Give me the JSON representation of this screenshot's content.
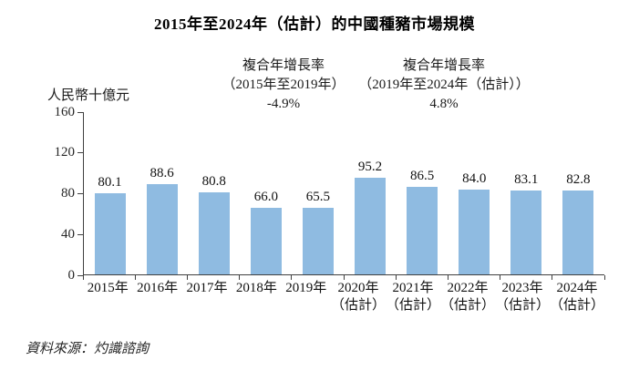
{
  "title": "2015年至2024年（估計）的中國種豬市場規模",
  "annotations": {
    "left": {
      "line1": "複合年增長率",
      "line2": "（2015年至2019年）",
      "value": "-4.9%"
    },
    "right": {
      "line1": "複合年增長率",
      "line2": "（2019年至2024年（估計））",
      "value": "4.8%"
    }
  },
  "source": "資料來源：灼識諮詢",
  "colors": {
    "bar": "#8FBBE1",
    "axis": "#404040"
  },
  "chart_data": {
    "type": "bar",
    "title": "2015年至2024年（估計）的中國種豬市場規模",
    "ylabel": "人民幣十億元",
    "xlabel": "",
    "ylim": [
      0,
      160
    ],
    "yticks": [
      0,
      40,
      80,
      120,
      160
    ],
    "grid": false,
    "legend": false,
    "categories": [
      {
        "label": "2015年",
        "sublabel": ""
      },
      {
        "label": "2016年",
        "sublabel": ""
      },
      {
        "label": "2017年",
        "sublabel": ""
      },
      {
        "label": "2018年",
        "sublabel": ""
      },
      {
        "label": "2019年",
        "sublabel": ""
      },
      {
        "label": "2020年",
        "sublabel": "（估計）"
      },
      {
        "label": "2021年",
        "sublabel": "（估計）"
      },
      {
        "label": "2022年",
        "sublabel": "（估計）"
      },
      {
        "label": "2023年",
        "sublabel": "（估計）"
      },
      {
        "label": "2024年",
        "sublabel": "（估計）"
      }
    ],
    "values": [
      80.1,
      88.6,
      80.8,
      66.0,
      65.5,
      95.2,
      86.5,
      84.0,
      83.1,
      82.8
    ],
    "value_labels": [
      "80.1",
      "88.6",
      "80.8",
      "66.0",
      "65.5",
      "95.2",
      "86.5",
      "84.0",
      "83.1",
      "82.8"
    ],
    "cagr_2015_2019": "-4.9%",
    "cagr_2019_2024": "4.8%"
  }
}
